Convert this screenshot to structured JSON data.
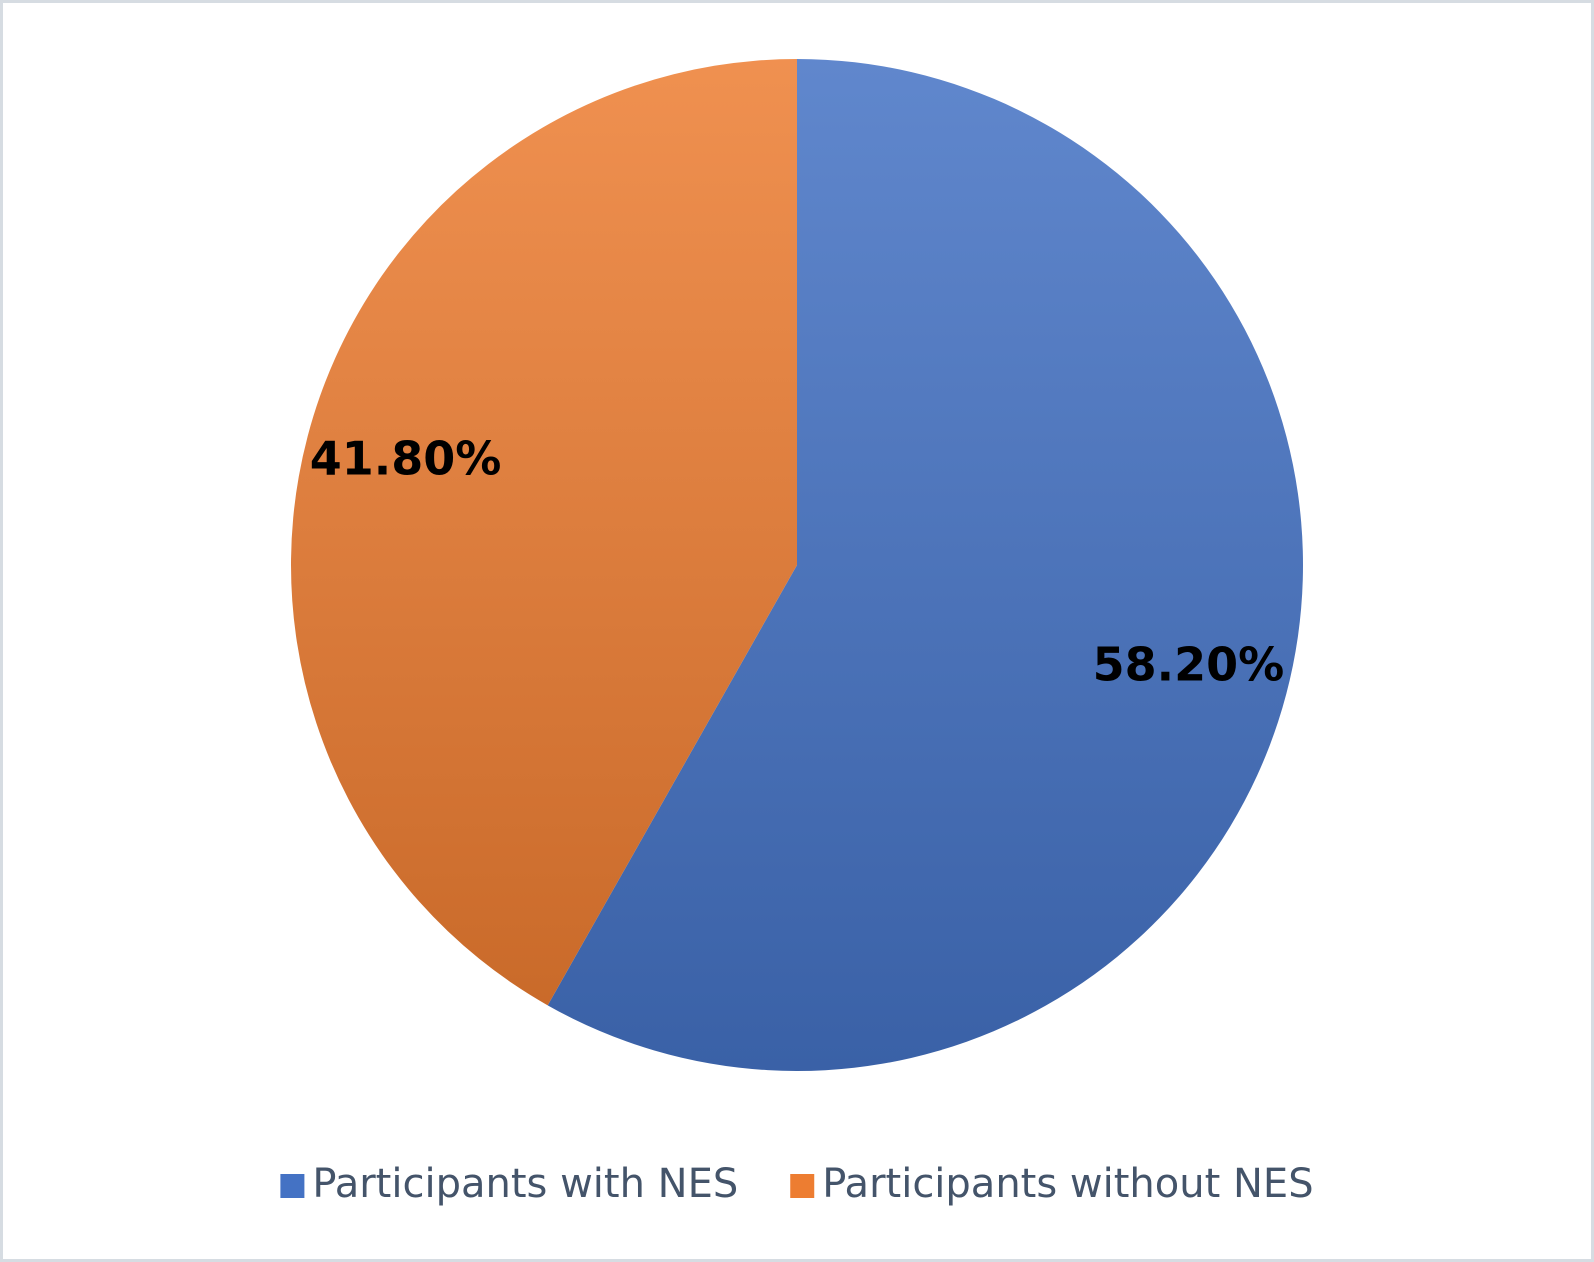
{
  "chart_data": {
    "type": "pie",
    "categories": [
      "Participants with NES",
      "Participants without NES"
    ],
    "values": [
      58.2,
      41.8
    ],
    "value_labels": [
      "58.20%",
      "41.80%"
    ],
    "colors": [
      "#4472c4",
      "#ed7d31"
    ],
    "legend": "bottom"
  }
}
